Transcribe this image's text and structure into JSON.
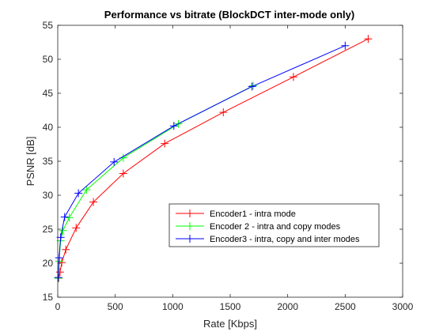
{
  "chart_data": {
    "type": "line",
    "title": "Performance vs bitrate (BlockDCT inter-mode only)",
    "xlabel": "Rate [Kbps]",
    "ylabel": "PSNR [dB]",
    "xlim": [
      0,
      3000
    ],
    "ylim": [
      15,
      55
    ],
    "xticks": [
      0,
      500,
      1000,
      1500,
      2000,
      2500,
      3000
    ],
    "yticks": [
      15,
      20,
      25,
      30,
      35,
      40,
      45,
      50,
      55
    ],
    "grid": false,
    "legend_position": "center-right",
    "marker": "+",
    "series": [
      {
        "name": "Encoder1 - intra mode",
        "color": "#ff0000",
        "x": [
          8,
          20,
          35,
          70,
          160,
          310,
          570,
          930,
          1440,
          2050,
          2700
        ],
        "y": [
          17.8,
          18.7,
          20.1,
          22.0,
          25.2,
          29.0,
          33.2,
          37.6,
          42.2,
          47.4,
          53.0
        ]
      },
      {
        "name": "Encoder 2 - intra and copy modes",
        "color": "#00ff00",
        "x": [
          5,
          12,
          25,
          45,
          100,
          250,
          570,
          1050,
          1700
        ],
        "y": [
          17.8,
          20.3,
          23.3,
          24.8,
          26.7,
          30.8,
          35.5,
          40.5,
          46.1
        ]
      },
      {
        "name": "Encoder3 - intra, copy and inter modes",
        "color": "#0000ff",
        "x": [
          5,
          12,
          25,
          60,
          180,
          490,
          1010,
          1690,
          2500
        ],
        "y": [
          17.9,
          20.8,
          23.8,
          26.8,
          30.3,
          34.9,
          40.2,
          46.0,
          52.0
        ]
      }
    ]
  }
}
